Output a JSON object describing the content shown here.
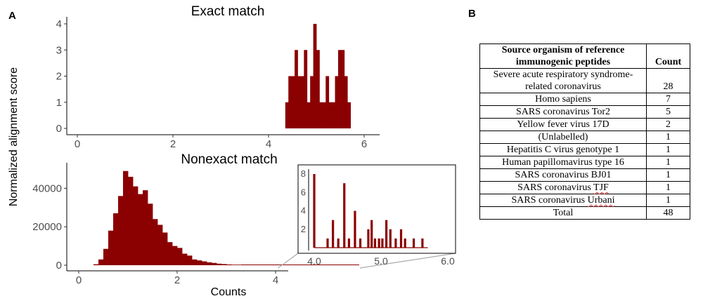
{
  "panel_labels": {
    "a": "A",
    "b": "B"
  },
  "colors": {
    "bar": "#8b0000",
    "axis": "#000000",
    "tick_text": "#4d4d4d",
    "zoom_lines": "#aaaaaa"
  },
  "y_axis_title": "Normalized alignment score",
  "chart_data": [
    {
      "type": "bar",
      "title": "Exact match",
      "xlabel": "",
      "ylabel": "Normalized alignment score",
      "xlim": [
        0,
        6
      ],
      "ylim": [
        0,
        4
      ],
      "x_ticks": [
        "0",
        "2",
        "4",
        "6"
      ],
      "y_ticks": [
        "0",
        "1",
        "2",
        "3",
        "4"
      ],
      "bin_width": 0.065,
      "series": [
        {
          "bin_start": [
            4.35,
            4.415,
            4.48,
            4.545,
            4.61,
            4.675,
            4.74,
            4.805,
            4.87,
            4.935,
            5.0,
            5.065,
            5.13,
            5.195,
            5.26,
            5.325,
            5.39,
            5.455,
            5.52,
            5.585,
            5.65
          ],
          "values": [
            1,
            2,
            2,
            3,
            2,
            2,
            3,
            1,
            2,
            4,
            3,
            1,
            1,
            2,
            1,
            1,
            2,
            3,
            3,
            2,
            1
          ]
        }
      ]
    },
    {
      "type": "bar",
      "title": "Nonexact match",
      "xlabel": "Counts",
      "ylabel": "Normalized alignment score",
      "xlim": [
        0,
        4
      ],
      "ylim": [
        0,
        50000
      ],
      "x_ticks": [
        "0",
        "2",
        "4"
      ],
      "y_ticks": [
        "0",
        "20000",
        "40000"
      ],
      "bin_width": 0.1,
      "series": [
        {
          "bin_start": [
            0.3,
            0.4,
            0.5,
            0.6,
            0.7,
            0.8,
            0.9,
            1.0,
            1.1,
            1.2,
            1.3,
            1.4,
            1.5,
            1.6,
            1.7,
            1.8,
            1.9,
            2.0,
            2.1,
            2.2,
            2.3,
            2.4,
            2.5,
            2.6,
            2.7,
            2.8,
            2.9,
            3.0,
            3.1,
            3.2
          ],
          "values": [
            500,
            3000,
            8500,
            18000,
            27000,
            36000,
            49000,
            46000,
            41000,
            37000,
            39000,
            32000,
            24000,
            21000,
            17000,
            12000,
            10000,
            9000,
            6000,
            5000,
            3000,
            2500,
            2000,
            1500,
            1200,
            800,
            600,
            400,
            300,
            200
          ]
        }
      ],
      "trail": {
        "from": 3.3,
        "to": 5.7,
        "value": 100
      }
    },
    {
      "type": "bar",
      "title": "",
      "xlabel": "",
      "ylabel": "",
      "xlim": [
        3.95,
        6.0
      ],
      "ylim": [
        0,
        8
      ],
      "x_ticks": [
        "4.0",
        "5.0",
        "6.0"
      ],
      "y_ticks": [
        "2",
        "4",
        "6",
        "8"
      ],
      "series": [
        {
          "x": [
            4.0,
            4.2,
            4.28,
            4.36,
            4.45,
            4.52,
            4.61,
            4.69,
            4.81,
            4.86,
            4.91,
            4.97,
            5.02,
            5.08,
            5.14,
            5.22,
            5.3,
            5.36,
            5.49,
            5.62
          ],
          "values": [
            8,
            1,
            3,
            1,
            7,
            1,
            4,
            1,
            2,
            3,
            1,
            1,
            1,
            3,
            2,
            1,
            2,
            1,
            1,
            1
          ]
        }
      ],
      "baseline_to": 5.7
    }
  ],
  "table": {
    "headers": {
      "organism": "Source organism of reference immunogenic peptides",
      "count": "Count"
    },
    "rows": [
      {
        "organism": "Severe acute respiratory syndrome-related coronavirus",
        "count": "28"
      },
      {
        "organism": "Homo sapiens",
        "count": "7"
      },
      {
        "organism": "SARS coronavirus Tor2",
        "count": "5"
      },
      {
        "organism": "Yellow fever virus 17D",
        "count": "2"
      },
      {
        "organism": "(Unlabelled)",
        "count": "1"
      },
      {
        "organism": "Hepatitis C virus genotype 1",
        "count": "1"
      },
      {
        "organism": "Human papillomavirus type 16",
        "count": "1"
      },
      {
        "organism": "SARS coronavirus BJ01",
        "count": "1"
      },
      {
        "organism": "SARS coronavirus TJF",
        "count": "1"
      },
      {
        "organism": "SARS coronavirus Urbani",
        "count": "1"
      }
    ],
    "total": {
      "label": "Total",
      "count": "48"
    }
  }
}
